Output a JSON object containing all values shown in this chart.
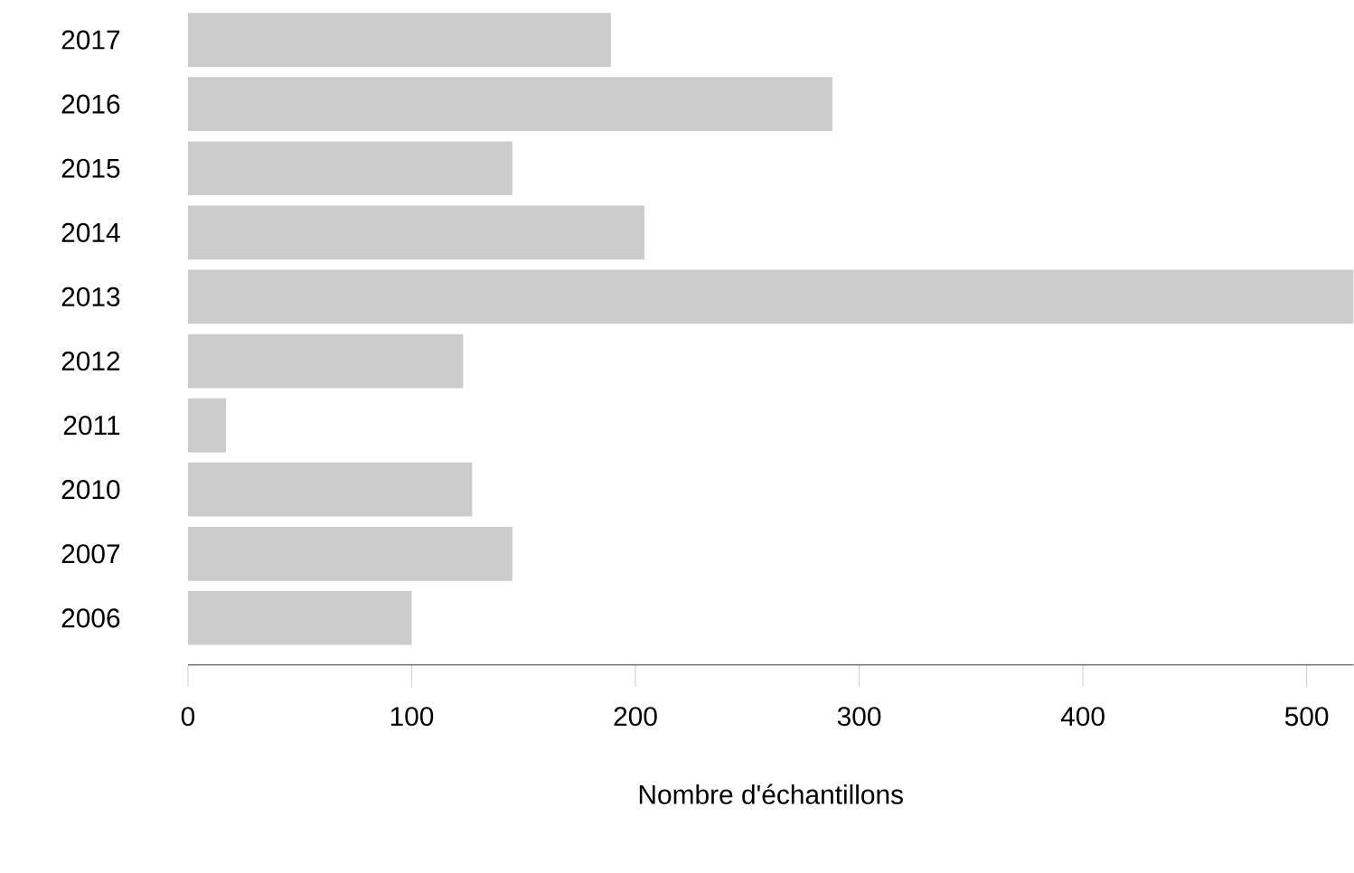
{
  "chart_data": {
    "type": "bar",
    "orientation": "horizontal",
    "xlabel": "Nombre d'échantillons",
    "categories": [
      "2017",
      "2016",
      "2015",
      "2014",
      "2013",
      "2012",
      "2011",
      "2010",
      "2007",
      "2006"
    ],
    "values": [
      189,
      288,
      145,
      204,
      521,
      123,
      17,
      127,
      145,
      100
    ],
    "color": "#cccccc",
    "xlim": [
      0,
      521
    ],
    "xticks": [
      0,
      100,
      200,
      300,
      400,
      500
    ]
  }
}
